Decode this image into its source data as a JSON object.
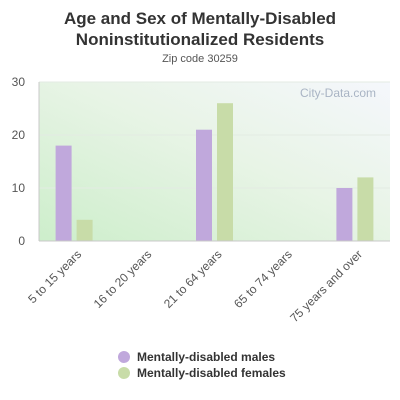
{
  "chart_data": {
    "type": "bar",
    "title_line1": "Age and Sex of Mentally-Disabled",
    "title_line2": "Noninstitutionalized Residents",
    "subtitle": "Zip code 30259",
    "watermark": "City-Data.com",
    "categories": [
      "5 to 15 years",
      "16 to 20 years",
      "21 to 64 years",
      "65 to 74 years",
      "75 years and over"
    ],
    "series": [
      {
        "name": "Mentally-disabled males",
        "color": "#c0a8dc",
        "values": [
          18,
          0,
          21,
          0,
          10
        ]
      },
      {
        "name": "Mentally-disabled females",
        "color": "#c8dca8",
        "values": [
          4,
          0,
          26,
          0,
          12
        ]
      }
    ],
    "ylim": [
      0,
      30
    ],
    "yticks": [
      0,
      10,
      20,
      30
    ],
    "legend_position": "bottom",
    "grid": true
  }
}
